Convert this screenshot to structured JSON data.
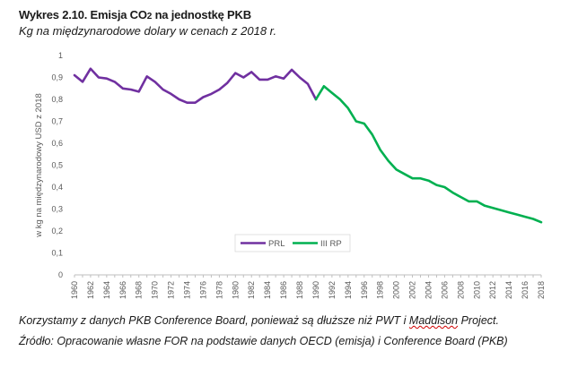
{
  "header": {
    "title_prefix": "Wykres 2.10. Emisja CO",
    "title_sub": "2",
    "title_suffix": " na jednostkę PKB",
    "subtitle": "Kg na międzynarodowe dolary w cenach z 2018 r."
  },
  "footer": {
    "note_before": "Korzystamy z danych PKB Conference Board, ponieważ są dłuższe niż PWT i ",
    "note_marked": "Maddison",
    "note_after": " Project.",
    "source": "Źródło: Opracowanie własne FOR na podstawie danych OECD (emisja) i Conference Board (PKB)"
  },
  "chart_data": {
    "type": "line",
    "title": "Wykres 2.10. Emisja CO₂ na jednostkę PKB",
    "subtitle": "Kg na międzynarodowe dolary w cenach z 2018 r.",
    "xlabel": "",
    "ylabel": "w kg na międzynarodowy USD z 2018",
    "xlim": [
      1960,
      2018
    ],
    "ylim": [
      0,
      1
    ],
    "yticks": [
      "0",
      "0,1",
      "0,2",
      "0,3",
      "0,4",
      "0,5",
      "0,6",
      "0,7",
      "0,8",
      "0,9",
      "1"
    ],
    "xticks": [
      "1960",
      "1962",
      "1964",
      "1966",
      "1968",
      "1970",
      "1972",
      "1974",
      "1976",
      "1978",
      "1980",
      "1982",
      "1984",
      "1986",
      "1988",
      "1990",
      "1992",
      "1994",
      "1996",
      "1998",
      "2000",
      "2002",
      "2004",
      "2006",
      "2008",
      "2010",
      "2012",
      "2014",
      "2016",
      "2018"
    ],
    "grid": false,
    "legend_position": "center",
    "series": [
      {
        "name": "PRL",
        "color": "#7030a0",
        "x": [
          1960,
          1961,
          1962,
          1963,
          1964,
          1965,
          1966,
          1967,
          1968,
          1969,
          1970,
          1971,
          1972,
          1973,
          1974,
          1975,
          1976,
          1977,
          1978,
          1979,
          1980,
          1981,
          1982,
          1983,
          1984,
          1985,
          1986,
          1987,
          1988,
          1989,
          1990
        ],
        "y": [
          0.91,
          0.88,
          0.94,
          0.9,
          0.895,
          0.88,
          0.85,
          0.845,
          0.835,
          0.905,
          0.88,
          0.845,
          0.825,
          0.8,
          0.785,
          0.785,
          0.81,
          0.825,
          0.845,
          0.875,
          0.92,
          0.9,
          0.925,
          0.89,
          0.89,
          0.905,
          0.895,
          0.935,
          0.9,
          0.87,
          0.8
        ]
      },
      {
        "name": "III RP",
        "color": "#00b050",
        "x": [
          1990,
          1991,
          1992,
          1993,
          1994,
          1995,
          1996,
          1997,
          1998,
          1999,
          2000,
          2001,
          2002,
          2003,
          2004,
          2005,
          2006,
          2007,
          2008,
          2009,
          2010,
          2011,
          2012,
          2013,
          2014,
          2015,
          2016,
          2017,
          2018
        ],
        "y": [
          0.8,
          0.86,
          0.83,
          0.8,
          0.76,
          0.7,
          0.69,
          0.64,
          0.57,
          0.52,
          0.48,
          0.46,
          0.44,
          0.44,
          0.43,
          0.41,
          0.4,
          0.375,
          0.355,
          0.335,
          0.335,
          0.315,
          0.305,
          0.295,
          0.285,
          0.275,
          0.265,
          0.255,
          0.24
        ]
      }
    ]
  }
}
